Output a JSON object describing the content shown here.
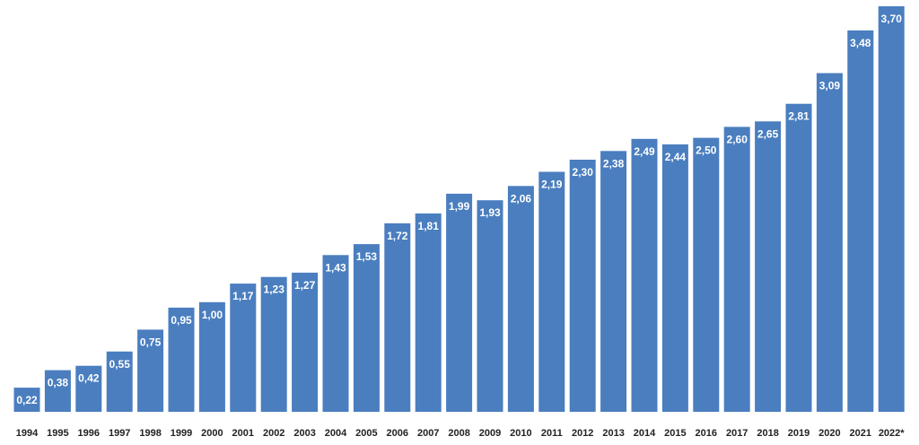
{
  "chart_data": {
    "type": "bar",
    "categories": [
      "1994",
      "1995",
      "1996",
      "1997",
      "1998",
      "1999",
      "2000",
      "2001",
      "2002",
      "2003",
      "2004",
      "2005",
      "2006",
      "2007",
      "2008",
      "2009",
      "2010",
      "2011",
      "2012",
      "2013",
      "2014",
      "2015",
      "2016",
      "2017",
      "2018",
      "2019",
      "2020",
      "2021",
      "2022*"
    ],
    "values": [
      0.22,
      0.38,
      0.42,
      0.55,
      0.75,
      0.95,
      1.0,
      1.17,
      1.23,
      1.27,
      1.43,
      1.53,
      1.72,
      1.81,
      1.99,
      1.93,
      2.06,
      2.19,
      2.3,
      2.38,
      2.49,
      2.44,
      2.5,
      2.6,
      2.65,
      2.81,
      3.09,
      3.48,
      3.7
    ],
    "labels": [
      "0,22",
      "0,38",
      "0,42",
      "0,55",
      "0,75",
      "0,95",
      "1,00",
      "1,17",
      "1,23",
      "1,27",
      "1,43",
      "1,53",
      "1,72",
      "1,81",
      "1,99",
      "1,93",
      "2,06",
      "2,19",
      "2,30",
      "2,38",
      "2,49",
      "2,44",
      "2,50",
      "2,60",
      "2,65",
      "2,81",
      "3,09",
      "3,48",
      "3,70"
    ],
    "ylim": [
      0,
      3.7
    ],
    "bar_color": "#4a7ebf",
    "label_color": "#ffffff",
    "grid": false,
    "legend": false
  }
}
